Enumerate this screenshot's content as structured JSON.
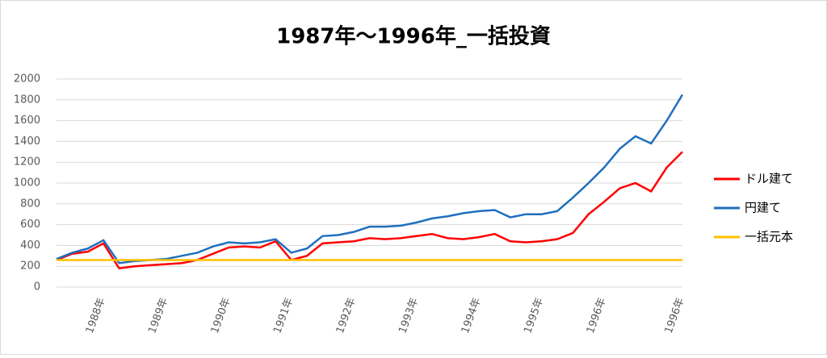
{
  "chart_data": {
    "type": "line",
    "title": "1987年～1996年_一括投資",
    "categories": [
      null,
      null,
      null,
      "1988年",
      null,
      null,
      null,
      "1989年",
      null,
      null,
      null,
      "1990年",
      null,
      null,
      null,
      "1991年",
      null,
      null,
      null,
      "1992年",
      null,
      null,
      null,
      "1993年",
      null,
      null,
      null,
      "1994年",
      null,
      null,
      null,
      "1995年",
      null,
      null,
      null,
      "1996年",
      null,
      null,
      null,
      null,
      "1996年"
    ],
    "series": [
      {
        "name": "ドル建て",
        "color": "#ff0000",
        "values": [
          260,
          320,
          340,
          420,
          180,
          200,
          210,
          220,
          230,
          260,
          320,
          380,
          390,
          380,
          440,
          260,
          300,
          420,
          430,
          440,
          470,
          460,
          470,
          490,
          510,
          470,
          460,
          480,
          510,
          440,
          430,
          440,
          460,
          520,
          700,
          820,
          950,
          1000,
          920,
          1150,
          1300
        ]
      },
      {
        "name": "円建て",
        "color": "#1f6fbf",
        "values": [
          270,
          330,
          370,
          450,
          230,
          250,
          260,
          270,
          300,
          330,
          390,
          430,
          420,
          430,
          460,
          330,
          370,
          490,
          500,
          530,
          580,
          580,
          590,
          620,
          660,
          680,
          710,
          730,
          740,
          670,
          700,
          700,
          730,
          860,
          1000,
          1150,
          1330,
          1450,
          1380,
          1600,
          1850
        ]
      },
      {
        "name": "一括元本",
        "color": "#ffc000",
        "values": [
          260,
          260,
          260,
          260,
          260,
          260,
          260,
          260,
          260,
          260,
          260,
          260,
          260,
          260,
          260,
          260,
          260,
          260,
          260,
          260,
          260,
          260,
          260,
          260,
          260,
          260,
          260,
          260,
          260,
          260,
          260,
          260,
          260,
          260,
          260,
          260,
          260,
          260,
          260,
          260,
          260
        ]
      }
    ],
    "ylim": [
      0,
      2000
    ],
    "yticks": [
      0,
      200,
      400,
      600,
      800,
      1000,
      1200,
      1400,
      1600,
      1800,
      2000
    ],
    "grid": true,
    "legend": "right"
  }
}
